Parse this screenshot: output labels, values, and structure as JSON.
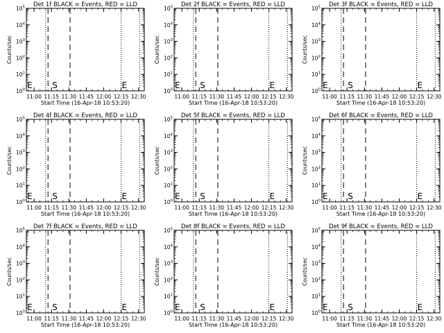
{
  "chart_data": [
    {
      "type": "line",
      "title": "Det 1f BLACK = Events, RED = LLD",
      "xlabel": "Start Time (16-Apr-18 10:53:20)",
      "ylabel": "Counts/sec",
      "x_ticks": [
        "11:00",
        "11:15",
        "11:30",
        "11:45",
        "12:00",
        "12:15",
        "12:30"
      ],
      "y_ticks": [
        "10^0",
        "10^1",
        "10^2",
        "10^3",
        "10^4",
        "10^5"
      ],
      "ylim": [
        1,
        100000
      ],
      "xlim": [
        "10:53:20",
        "12:35"
      ],
      "y_scale": "log",
      "series": [],
      "markers": [
        {
          "label": "E",
          "time": "10:53:20"
        },
        {
          "label": "S",
          "time": "11:15"
        },
        {
          "label": "E",
          "time": "12:15"
        }
      ],
      "dotted_lines": [
        "11:10",
        "12:15",
        "12:31"
      ],
      "dashed_lines": [
        "11:12",
        "11:31"
      ],
      "grid": false
    },
    {
      "type": "line",
      "title": "Det 2f BLACK = Events, RED = LLD",
      "xlabel": "Start Time (16-Apr-18 10:53:20)",
      "ylabel": "Counts/sec",
      "x_ticks": [
        "11:00",
        "11:15",
        "11:30",
        "11:45",
        "12:00",
        "12:15",
        "12:30"
      ],
      "y_ticks": [
        "10^0",
        "10^1",
        "10^2",
        "10^3",
        "10^4",
        "10^5"
      ],
      "ylim": [
        1,
        100000
      ],
      "xlim": [
        "10:53:20",
        "12:35"
      ],
      "y_scale": "log",
      "series": [],
      "markers": [
        {
          "label": "E",
          "time": "10:53:20"
        },
        {
          "label": "S",
          "time": "11:15"
        },
        {
          "label": "E",
          "time": "12:15"
        }
      ],
      "dotted_lines": [
        "11:10",
        "12:15",
        "12:31"
      ],
      "dashed_lines": [
        "11:12",
        "11:31"
      ],
      "grid": false
    },
    {
      "type": "line",
      "title": "Det 3f BLACK = Events, RED = LLD",
      "xlabel": "Start Time (16-Apr-18 10:53:20)",
      "ylabel": "Counts/sec",
      "x_ticks": [
        "11:00",
        "11:15",
        "11:30",
        "11:45",
        "12:00",
        "12:15",
        "12:30"
      ],
      "y_ticks": [
        "10^0",
        "10^1",
        "10^2",
        "10^3",
        "10^4",
        "10^5"
      ],
      "ylim": [
        1,
        100000
      ],
      "xlim": [
        "10:53:20",
        "12:35"
      ],
      "y_scale": "log",
      "series": [],
      "markers": [
        {
          "label": "E",
          "time": "10:53:20"
        },
        {
          "label": "S",
          "time": "11:15"
        },
        {
          "label": "E",
          "time": "12:15"
        }
      ],
      "dotted_lines": [
        "11:10",
        "12:15",
        "12:31"
      ],
      "dashed_lines": [
        "11:12",
        "11:31"
      ],
      "grid": false
    },
    {
      "type": "line",
      "title": "Det 4f BLACK = Events, RED = LLD",
      "xlabel": "Start Time (16-Apr-18 10:53:20)",
      "ylabel": "Counts/sec",
      "x_ticks": [
        "11:00",
        "11:15",
        "11:30",
        "11:45",
        "12:00",
        "12:15",
        "12:30"
      ],
      "y_ticks": [
        "10^0",
        "10^1",
        "10^2",
        "10^3",
        "10^4",
        "10^5"
      ],
      "ylim": [
        1,
        100000
      ],
      "xlim": [
        "10:53:20",
        "12:35"
      ],
      "y_scale": "log",
      "series": [],
      "markers": [
        {
          "label": "E",
          "time": "10:53:20"
        },
        {
          "label": "S",
          "time": "11:15"
        },
        {
          "label": "E",
          "time": "12:15"
        }
      ],
      "dotted_lines": [
        "11:10",
        "12:15",
        "12:31"
      ],
      "dashed_lines": [
        "11:12",
        "11:31"
      ],
      "grid": false
    },
    {
      "type": "line",
      "title": "Det 5f BLACK = Events, RED = LLD",
      "xlabel": "Start Time (16-Apr-18 10:53:20)",
      "ylabel": "Counts/sec",
      "x_ticks": [
        "11:00",
        "11:15",
        "11:30",
        "11:45",
        "12:00",
        "12:15",
        "12:30"
      ],
      "y_ticks": [
        "10^0",
        "10^1",
        "10^2",
        "10^3",
        "10^4",
        "10^5"
      ],
      "ylim": [
        1,
        100000
      ],
      "xlim": [
        "10:53:20",
        "12:35"
      ],
      "y_scale": "log",
      "series": [],
      "markers": [
        {
          "label": "E",
          "time": "10:53:20"
        },
        {
          "label": "S",
          "time": "11:15"
        },
        {
          "label": "E",
          "time": "12:15"
        }
      ],
      "dotted_lines": [
        "11:10",
        "12:15",
        "12:31"
      ],
      "dashed_lines": [
        "11:12",
        "11:31"
      ],
      "grid": false
    },
    {
      "type": "line",
      "title": "Det 6f BLACK = Events, RED = LLD",
      "xlabel": "Start Time (16-Apr-18 10:53:20)",
      "ylabel": "Counts/sec",
      "x_ticks": [
        "11:00",
        "11:15",
        "11:30",
        "11:45",
        "12:00",
        "12:15",
        "12:30"
      ],
      "y_ticks": [
        "10^0",
        "10^1",
        "10^2",
        "10^3",
        "10^4",
        "10^5"
      ],
      "ylim": [
        1,
        100000
      ],
      "xlim": [
        "10:53:20",
        "12:35"
      ],
      "y_scale": "log",
      "series": [],
      "markers": [
        {
          "label": "E",
          "time": "10:53:20"
        },
        {
          "label": "S",
          "time": "11:15"
        },
        {
          "label": "E",
          "time": "12:15"
        }
      ],
      "dotted_lines": [
        "11:10",
        "12:15",
        "12:31"
      ],
      "dashed_lines": [
        "11:12",
        "11:31"
      ],
      "grid": false
    },
    {
      "type": "line",
      "title": "Det 7f BLACK = Events, RED = LLD",
      "xlabel": "Start Time (16-Apr-18 10:53:20)",
      "ylabel": "Counts/sec",
      "x_ticks": [
        "11:00",
        "11:15",
        "11:30",
        "11:45",
        "12:00",
        "12:15",
        "12:30"
      ],
      "y_ticks": [
        "10^0",
        "10^1",
        "10^2",
        "10^3",
        "10^4",
        "10^5"
      ],
      "ylim": [
        1,
        100000
      ],
      "xlim": [
        "10:53:20",
        "12:35"
      ],
      "y_scale": "log",
      "series": [],
      "markers": [
        {
          "label": "E",
          "time": "10:53:20"
        },
        {
          "label": "S",
          "time": "11:15"
        },
        {
          "label": "E",
          "time": "12:15"
        }
      ],
      "dotted_lines": [
        "11:10",
        "12:15",
        "12:31"
      ],
      "dashed_lines": [
        "11:12",
        "11:31"
      ],
      "grid": false
    },
    {
      "type": "line",
      "title": "Det 8f BLACK = Events, RED = LLD",
      "xlabel": "Start Time (16-Apr-18 10:53:20)",
      "ylabel": "Counts/sec",
      "x_ticks": [
        "11:00",
        "11:15",
        "11:30",
        "11:45",
        "12:00",
        "12:15",
        "12:30"
      ],
      "y_ticks": [
        "10^0",
        "10^1",
        "10^2",
        "10^3",
        "10^4",
        "10^5"
      ],
      "ylim": [
        1,
        100000
      ],
      "xlim": [
        "10:53:20",
        "12:35"
      ],
      "y_scale": "log",
      "series": [],
      "markers": [
        {
          "label": "E",
          "time": "10:53:20"
        },
        {
          "label": "S",
          "time": "11:15"
        },
        {
          "label": "E",
          "time": "12:15"
        }
      ],
      "dotted_lines": [
        "11:10",
        "12:15",
        "12:31"
      ],
      "dashed_lines": [
        "11:12",
        "11:31"
      ],
      "grid": false
    },
    {
      "type": "line",
      "title": "Det 9f BLACK = Events, RED = LLD",
      "xlabel": "Start Time (16-Apr-18 10:53:20)",
      "ylabel": "Counts/sec",
      "x_ticks": [
        "11:00",
        "11:15",
        "11:30",
        "11:45",
        "12:00",
        "12:15",
        "12:30"
      ],
      "y_ticks": [
        "10^0",
        "10^1",
        "10^2",
        "10^3",
        "10^4",
        "10^5"
      ],
      "ylim": [
        1,
        100000
      ],
      "xlim": [
        "10:53:20",
        "12:35"
      ],
      "y_scale": "log",
      "series": [],
      "markers": [
        {
          "label": "E",
          "time": "10:53:20"
        },
        {
          "label": "S",
          "time": "11:15"
        },
        {
          "label": "E",
          "time": "12:15"
        }
      ],
      "dotted_lines": [
        "11:10",
        "12:15",
        "12:31"
      ],
      "dashed_lines": [
        "11:12",
        "11:31"
      ],
      "grid": false
    }
  ]
}
